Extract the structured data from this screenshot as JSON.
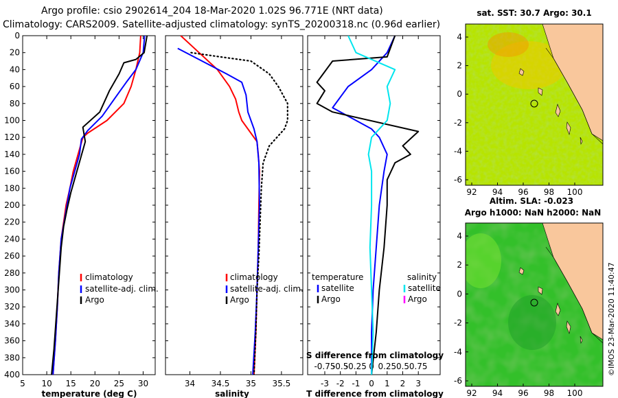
{
  "title": {
    "line1": "Argo profile: csio 2902614_204 18-Mar-2020 1.02S 96.771E (NRT data)",
    "line2": "Climatology: CARS2009. Satellite-adjusted climatology: synTS_20200318.nc (0.96d earlier)"
  },
  "colors": {
    "climatology": "#ff0000",
    "satellite": "#0000ff",
    "argo": "#000000",
    "sat_salinity": "#00e5ee",
    "argo_salinity": "#ff00ff",
    "land": "#f9c79c"
  },
  "legend": {
    "climatology": "climatology",
    "satellite_adj": "satellite-adj. clim.",
    "argo": "Argo",
    "temperature": "temperature",
    "salinity": "salinity",
    "satellite": "satellite"
  },
  "map_sst": {
    "title": "sat. SST: 30.7 Argo: 30.1"
  },
  "map_sla": {
    "title1": "Altim. SLA: -0.023",
    "title2": "Argo h1000: NaN h2000: NaN"
  },
  "copyright": "©IMOS 23-Mar-2020 11:40:47",
  "chart_data": [
    {
      "type": "line",
      "title": "",
      "xlabel": "temperature (deg C)",
      "ylabel": "",
      "xlim": [
        5,
        32.5
      ],
      "ylim": [
        400,
        0
      ],
      "xticks": [
        5,
        10,
        15,
        20,
        25,
        30
      ],
      "yticks": [
        0,
        20,
        40,
        60,
        80,
        100,
        120,
        140,
        160,
        180,
        200,
        220,
        240,
        260,
        280,
        300,
        320,
        340,
        360,
        380,
        400
      ],
      "series": [
        {
          "name": "climatology",
          "color": "#ff0000",
          "points": [
            [
              29.5,
              0
            ],
            [
              29.3,
              20
            ],
            [
              28.5,
              40
            ],
            [
              27.5,
              60
            ],
            [
              26,
              80
            ],
            [
              22.5,
              100
            ],
            [
              18.5,
              115
            ],
            [
              17.5,
              120
            ],
            [
              16.5,
              140
            ],
            [
              15.5,
              160
            ],
            [
              14.8,
              180
            ],
            [
              14,
              200
            ],
            [
              13.5,
              220
            ],
            [
              13,
              240
            ],
            [
              12.5,
              280
            ],
            [
              12.2,
              320
            ],
            [
              11.8,
              360
            ],
            [
              11.3,
              400
            ]
          ]
        },
        {
          "name": "satellite-adj. clim.",
          "color": "#0000ff",
          "points": [
            [
              30.3,
              0
            ],
            [
              30,
              20
            ],
            [
              28.5,
              40
            ],
            [
              26.5,
              55
            ],
            [
              24,
              75
            ],
            [
              21.5,
              95
            ],
            [
              18.5,
              112
            ],
            [
              17.2,
              122
            ],
            [
              16.8,
              140
            ],
            [
              15.8,
              160
            ],
            [
              14.8,
              180
            ],
            [
              14.2,
              200
            ],
            [
              13.6,
              220
            ],
            [
              13,
              240
            ],
            [
              12.5,
              280
            ],
            [
              12.2,
              320
            ],
            [
              11.8,
              360
            ],
            [
              11.3,
              400
            ]
          ]
        },
        {
          "name": "Argo",
          "color": "#000000",
          "points": [
            [
              30.8,
              0
            ],
            [
              30.2,
              20
            ],
            [
              28.5,
              28
            ],
            [
              26,
              32
            ],
            [
              25,
              45
            ],
            [
              23,
              65
            ],
            [
              21,
              90
            ],
            [
              17.5,
              108
            ],
            [
              18,
              125
            ],
            [
              17,
              145
            ],
            [
              16,
              165
            ],
            [
              15,
              185
            ],
            [
              14.2,
              205
            ],
            [
              13.5,
              225
            ],
            [
              13,
              250
            ],
            [
              12.5,
              290
            ],
            [
              12,
              330
            ],
            [
              11.5,
              370
            ],
            [
              11,
              400
            ]
          ]
        }
      ],
      "legend": [
        "climatology",
        "satellite-adj. clim.",
        "Argo"
      ]
    },
    {
      "type": "line",
      "title": "",
      "xlabel": "salinity",
      "ylabel": "",
      "xlim": [
        33.6,
        35.85
      ],
      "ylim": [
        400,
        0
      ],
      "xticks": [
        34,
        34.5,
        35,
        35.5
      ],
      "series": [
        {
          "name": "climatology",
          "color": "#ff0000",
          "points": [
            [
              33.85,
              0
            ],
            [
              34.15,
              20
            ],
            [
              34.45,
              40
            ],
            [
              34.65,
              60
            ],
            [
              34.75,
              75
            ],
            [
              34.8,
              90
            ],
            [
              34.85,
              100
            ],
            [
              35,
              115
            ],
            [
              35.1,
              125
            ],
            [
              35.12,
              140
            ],
            [
              35.14,
              160
            ],
            [
              35.13,
              200
            ],
            [
              35.12,
              250
            ],
            [
              35.1,
              300
            ],
            [
              35.08,
              350
            ],
            [
              35.05,
              400
            ]
          ]
        },
        {
          "name": "satellite-adj. clim.",
          "color": "#0000ff",
          "points": [
            [
              33.8,
              15
            ],
            [
              34.2,
              30
            ],
            [
              34.6,
              45
            ],
            [
              34.85,
              55
            ],
            [
              34.92,
              70
            ],
            [
              34.95,
              90
            ],
            [
              35.05,
              110
            ],
            [
              35.1,
              125
            ],
            [
              35.13,
              150
            ],
            [
              35.14,
              200
            ],
            [
              35.12,
              250
            ],
            [
              35.1,
              300
            ],
            [
              35.07,
              350
            ],
            [
              35.03,
              400
            ]
          ]
        },
        {
          "name": "Argo",
          "color": "#000000",
          "dotted": true,
          "points": [
            [
              34.02,
              20
            ],
            [
              34.5,
              25
            ],
            [
              35,
              30
            ],
            [
              35.3,
              45
            ],
            [
              35.45,
              60
            ],
            [
              35.6,
              80
            ],
            [
              35.6,
              100
            ],
            [
              35.55,
              110
            ],
            [
              35.3,
              130
            ],
            [
              35.2,
              150
            ],
            [
              35.17,
              180
            ],
            [
              35.15,
              220
            ],
            [
              35.13,
              260
            ],
            [
              35.1,
              300
            ],
            [
              35.08,
              350
            ],
            [
              35.05,
              400
            ]
          ]
        }
      ],
      "legend": [
        "climatology",
        "satellite-adj. clim.",
        "Argo"
      ]
    },
    {
      "type": "line",
      "title": "",
      "xlabel": "T difference from climatology",
      "xlabel_top": "S difference from climatology",
      "xlim": [
        -4.1,
        4.4
      ],
      "ylim": [
        400,
        0
      ],
      "xticks": [
        -3,
        -2,
        -1,
        0,
        1,
        2,
        3
      ],
      "xticklabels": [
        "-3",
        "-2",
        "-1",
        "0",
        "1",
        "2",
        "3"
      ],
      "xticks_S": [
        -3,
        -2,
        -1,
        0,
        1,
        2,
        3
      ],
      "xticklabels_S": [
        "-0.75",
        "-0.5",
        "-0.25",
        "0",
        "0.25",
        "0.5",
        "0.75"
      ],
      "series": [
        {
          "name": "temperature satellite",
          "color": "#0000ff",
          "points": [
            [
              1.5,
              0
            ],
            [
              1,
              20
            ],
            [
              0,
              40
            ],
            [
              -1.5,
              60
            ],
            [
              -2.5,
              85
            ],
            [
              -1,
              100
            ],
            [
              0,
              110
            ],
            [
              0.5,
              120
            ],
            [
              1,
              140
            ],
            [
              0.8,
              160
            ],
            [
              0.5,
              200
            ],
            [
              0.3,
              250
            ],
            [
              0.1,
              300
            ],
            [
              0,
              350
            ],
            [
              0,
              400
            ]
          ]
        },
        {
          "name": "temperature Argo",
          "color": "#000000",
          "points": [
            [
              1.5,
              0
            ],
            [
              1,
              25
            ],
            [
              -2.5,
              30
            ],
            [
              -3.5,
              55
            ],
            [
              -3,
              65
            ],
            [
              -3.5,
              80
            ],
            [
              -2.5,
              90
            ],
            [
              3,
              113
            ],
            [
              2,
              130
            ],
            [
              2.5,
              140
            ],
            [
              1.5,
              150
            ],
            [
              1,
              170
            ],
            [
              1,
              200
            ],
            [
              0.8,
              250
            ],
            [
              0.5,
              300
            ],
            [
              0.3,
              350
            ],
            [
              0,
              400
            ]
          ]
        },
        {
          "name": "salinity satellite",
          "color": "#00e5ee",
          "points": [
            [
              -1.5,
              0
            ],
            [
              -1,
              20
            ],
            [
              1.5,
              40
            ],
            [
              1,
              60
            ],
            [
              1.2,
              80
            ],
            [
              1,
              100
            ],
            [
              0.5,
              110
            ],
            [
              0,
              120
            ],
            [
              -0.2,
              140
            ],
            [
              0,
              160
            ],
            [
              0,
              200
            ],
            [
              -0.1,
              250
            ],
            [
              0,
              300
            ],
            [
              0.1,
              350
            ],
            [
              0,
              400
            ]
          ]
        }
      ],
      "legend_left": [
        "temperature",
        "satellite",
        "Argo"
      ],
      "legend_right": [
        "salinity",
        "satellite",
        "Argo"
      ]
    }
  ],
  "map_axes": {
    "xticks": [
      "92",
      "94",
      "96",
      "98",
      "100"
    ],
    "yticks": [
      "4",
      "2",
      "0",
      "-2",
      "-4",
      "-6"
    ]
  }
}
